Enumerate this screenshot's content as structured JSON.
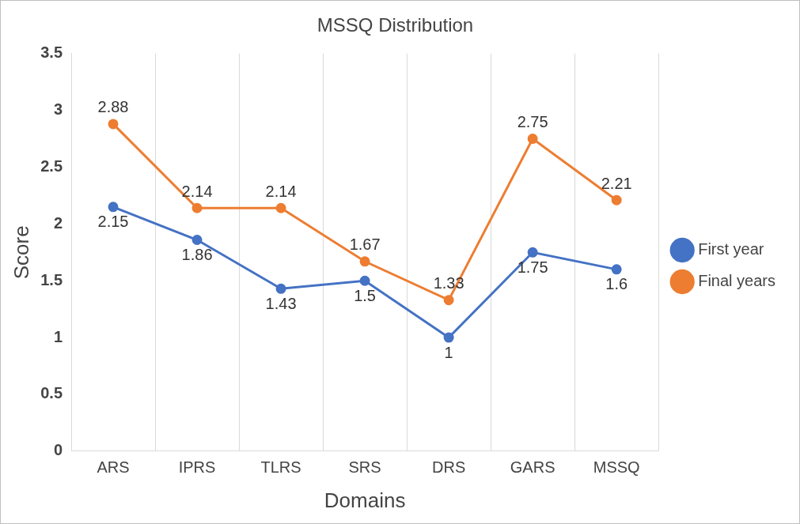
{
  "chart_data": {
    "type": "line",
    "title": "MSSQ Distribution",
    "x_label": "Domains",
    "y_label": "Score",
    "categories": [
      "ARS",
      "IPRS",
      "TLRS",
      "SRS",
      "DRS",
      "GARS",
      "MSSQ"
    ],
    "series": [
      {
        "name": "First year",
        "color": "#4472c4",
        "marker": "circle",
        "line_style": "solid",
        "values": [
          2.15,
          1.86,
          1.43,
          1.5,
          1,
          1.75,
          1.6
        ]
      },
      {
        "name": "Final years",
        "color": "#ed7d31",
        "marker": "circle",
        "line_style": "solid",
        "values": [
          2.88,
          2.14,
          2.14,
          1.67,
          1.33,
          2.75,
          2.21
        ]
      }
    ],
    "ylim": [
      0,
      3.5
    ],
    "yticks": [
      0,
      0.5,
      1,
      1.5,
      2,
      2.5,
      3,
      3.5
    ],
    "grid": true,
    "legend": "right",
    "data_labels": true
  }
}
